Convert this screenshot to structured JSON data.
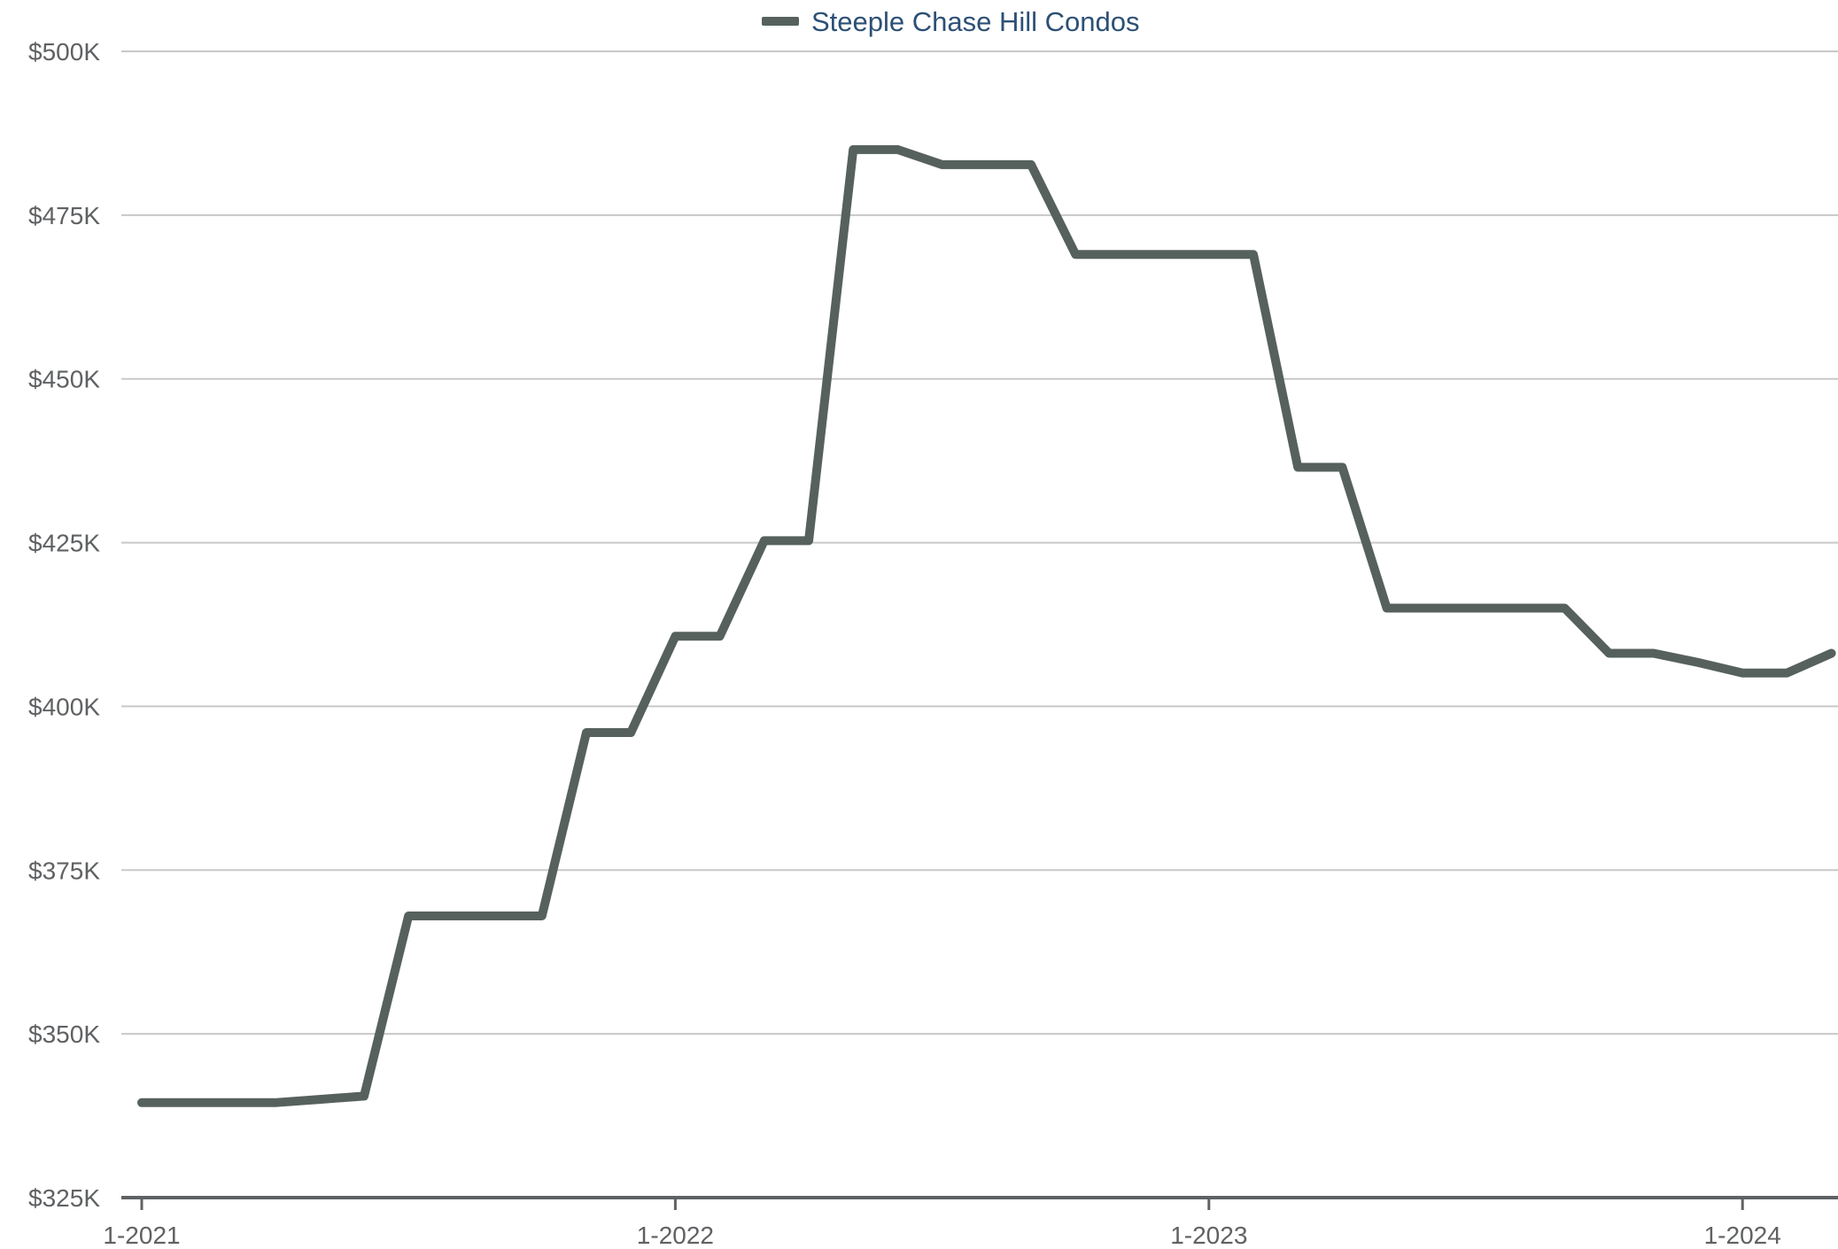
{
  "chart_data": {
    "type": "line",
    "legend": {
      "position": "top-center",
      "entries": [
        "Steeple Chase Hill Condos"
      ]
    },
    "grid": true,
    "x_axis": {
      "type": "monthly",
      "start": "2021-01",
      "ticks": [
        {
          "label": "1-2021",
          "month": "2021-01"
        },
        {
          "label": "1-2022",
          "month": "2022-01"
        },
        {
          "label": "1-2023",
          "month": "2023-01"
        },
        {
          "label": "1-2024",
          "month": "2024-01"
        }
      ]
    },
    "y_axis": {
      "ylim": [
        325000,
        500000
      ],
      "ticks": [
        {
          "value": 325000,
          "label": "$325K"
        },
        {
          "value": 350000,
          "label": "$350K"
        },
        {
          "value": 375000,
          "label": "$375K"
        },
        {
          "value": 400000,
          "label": "$400K"
        },
        {
          "value": 425000,
          "label": "$425K"
        },
        {
          "value": 450000,
          "label": "$450K"
        },
        {
          "value": 475000,
          "label": "$475K"
        },
        {
          "value": 500000,
          "label": "$500K"
        }
      ]
    },
    "series": [
      {
        "name": "Steeple Chase Hill Condos",
        "color": "#56615e",
        "x": [
          "2021-01",
          "2021-02",
          "2021-03",
          "2021-04",
          "2021-05",
          "2021-06",
          "2021-07",
          "2021-08",
          "2021-09",
          "2021-10",
          "2021-11",
          "2021-12",
          "2022-01",
          "2022-02",
          "2022-03",
          "2022-04",
          "2022-05",
          "2022-06",
          "2022-07",
          "2022-08",
          "2022-09",
          "2022-10",
          "2022-11",
          "2022-12",
          "2023-01",
          "2023-02",
          "2023-03",
          "2023-04",
          "2023-05",
          "2023-06",
          "2023-07",
          "2023-08",
          "2023-09",
          "2023-10",
          "2023-11",
          "2023-12",
          "2024-01",
          "2024-02",
          "2024-03"
        ],
        "values": [
          339500,
          339500,
          339500,
          339500,
          340000,
          340500,
          368000,
          368000,
          368000,
          368000,
          396000,
          396000,
          410700,
          410700,
          425300,
          425300,
          485000,
          485000,
          482700,
          482700,
          482700,
          469000,
          469000,
          469000,
          469000,
          469000,
          436500,
          436500,
          415000,
          415000,
          415000,
          415000,
          415000,
          408100,
          408100,
          406700,
          405100,
          405100,
          408100
        ]
      }
    ]
  },
  "colors": {
    "background": "#ffffff",
    "gridline": "#c8c8c8",
    "axis": "#5f6163",
    "tick_text": "#5f6163",
    "legend_text": "#2c5075"
  }
}
